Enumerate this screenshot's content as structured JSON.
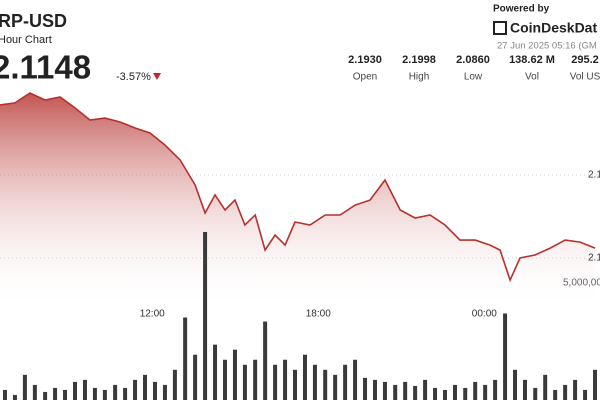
{
  "header": {
    "symbol": "RP-USD",
    "period": "Hour Chart",
    "price": "2.1148",
    "change": "-3.57%"
  },
  "stats": [
    {
      "value": "2.1930",
      "label": "Open"
    },
    {
      "value": "2.1998",
      "label": "High"
    },
    {
      "value": "2.0860",
      "label": "Low"
    },
    {
      "value": "138.62 M",
      "label": "Vol"
    },
    {
      "value": "295.2",
      "label": "Vol US"
    }
  ],
  "brand": {
    "powered": "Powered by",
    "name": "CoinDeskDat",
    "date": "27 Jun 2025 05:16 (GM"
  },
  "chart_data": {
    "type": "line",
    "x": [
      6.5,
      7.04,
      7.58,
      8.13,
      8.67,
      9.21,
      9.75,
      10.29,
      10.84,
      11.38,
      11.92,
      12.46,
      13.01,
      13.55,
      13.91,
      14.27,
      14.63,
      14.99,
      15.35,
      15.72,
      16.08,
      16.44,
      16.8,
      17.16,
      17.7,
      18.25,
      18.79,
      19.33,
      19.87,
      20.41,
      20.96,
      21.5,
      22.04,
      22.58,
      23.12,
      23.67,
      24.21,
      24.57,
      24.93,
      25.29,
      25.83,
      26.38,
      26.92,
      27.46,
      28.0
    ],
    "series": [
      {
        "color": "#b5322e",
        "values": [
          2.1922,
          2.1934,
          2.1994,
          2.1952,
          2.197,
          2.1904,
          2.1831,
          2.1843,
          2.1819,
          2.1783,
          2.1753,
          2.1681,
          2.159,
          2.144,
          2.1271,
          2.138,
          2.1289,
          2.1349,
          2.1199,
          2.1259,
          2.1048,
          2.1139,
          2.1078,
          2.1217,
          2.1199,
          2.1259,
          2.1259,
          2.1319,
          2.1349,
          2.147,
          2.1289,
          2.1241,
          2.1259,
          2.1199,
          2.1108,
          2.1108,
          2.1078,
          2.1048,
          2.0867,
          2.1,
          2.1018,
          2.106,
          2.1108,
          2.1096,
          2.106
        ]
      },
      {
        "type": "bar",
        "axis": "y2",
        "color": "#3a3a3a",
        "x": [
          6.68,
          7.04,
          7.4,
          7.76,
          8.13,
          8.49,
          8.85,
          9.21,
          9.57,
          9.93,
          10.29,
          10.66,
          11.02,
          11.38,
          11.74,
          12.1,
          12.46,
          12.82,
          13.19,
          13.55,
          13.91,
          14.27,
          14.63,
          14.99,
          15.35,
          15.72,
          16.08,
          16.44,
          16.8,
          17.16,
          17.52,
          17.88,
          18.25,
          18.61,
          18.97,
          19.33,
          19.69,
          20.05,
          20.41,
          20.78,
          21.14,
          21.5,
          21.86,
          22.22,
          22.58,
          22.94,
          23.31,
          23.67,
          24.03,
          24.39,
          24.75,
          25.11,
          25.47,
          25.84,
          26.2,
          26.56,
          26.92,
          27.28,
          27.64,
          28.0
        ],
        "values": [
          430000,
          215000,
          1075000,
          645000,
          344000,
          516000,
          430000,
          774000,
          860000,
          516000,
          430000,
          645000,
          516000,
          860000,
          1075000,
          774000,
          645000,
          1290000,
          3526000,
          1935000,
          7181000,
          2365000,
          1720000,
          2150000,
          1505000,
          1720000,
          3354000,
          1505000,
          1720000,
          1290000,
          1935000,
          1505000,
          1290000,
          1075000,
          1505000,
          1720000,
          946000,
          860000,
          774000,
          645000,
          774000,
          602000,
          860000,
          516000,
          430000,
          645000,
          516000,
          774000,
          645000,
          860000,
          3698000,
          1290000,
          860000,
          516000,
          1075000,
          430000,
          645000,
          860000,
          430000,
          1290000
        ]
      }
    ],
    "xlim": [
      6.5,
      28.18
    ],
    "xticks": [
      {
        "value": 12,
        "label": "12:00"
      },
      {
        "value": 18,
        "label": "18:00"
      },
      {
        "value": 24,
        "label": "00:00"
      }
    ],
    "ylim": [
      2.0145,
      2.2554
    ],
    "yticks": [
      {
        "value": 2.15,
        "label": "2.1"
      },
      {
        "value": 2.1,
        "label": "2.1"
      }
    ],
    "y2lim": [
      0,
      17094000
    ],
    "y2ticks": [
      {
        "value": 5000000,
        "label": "5,000,00"
      }
    ],
    "grid": true
  }
}
